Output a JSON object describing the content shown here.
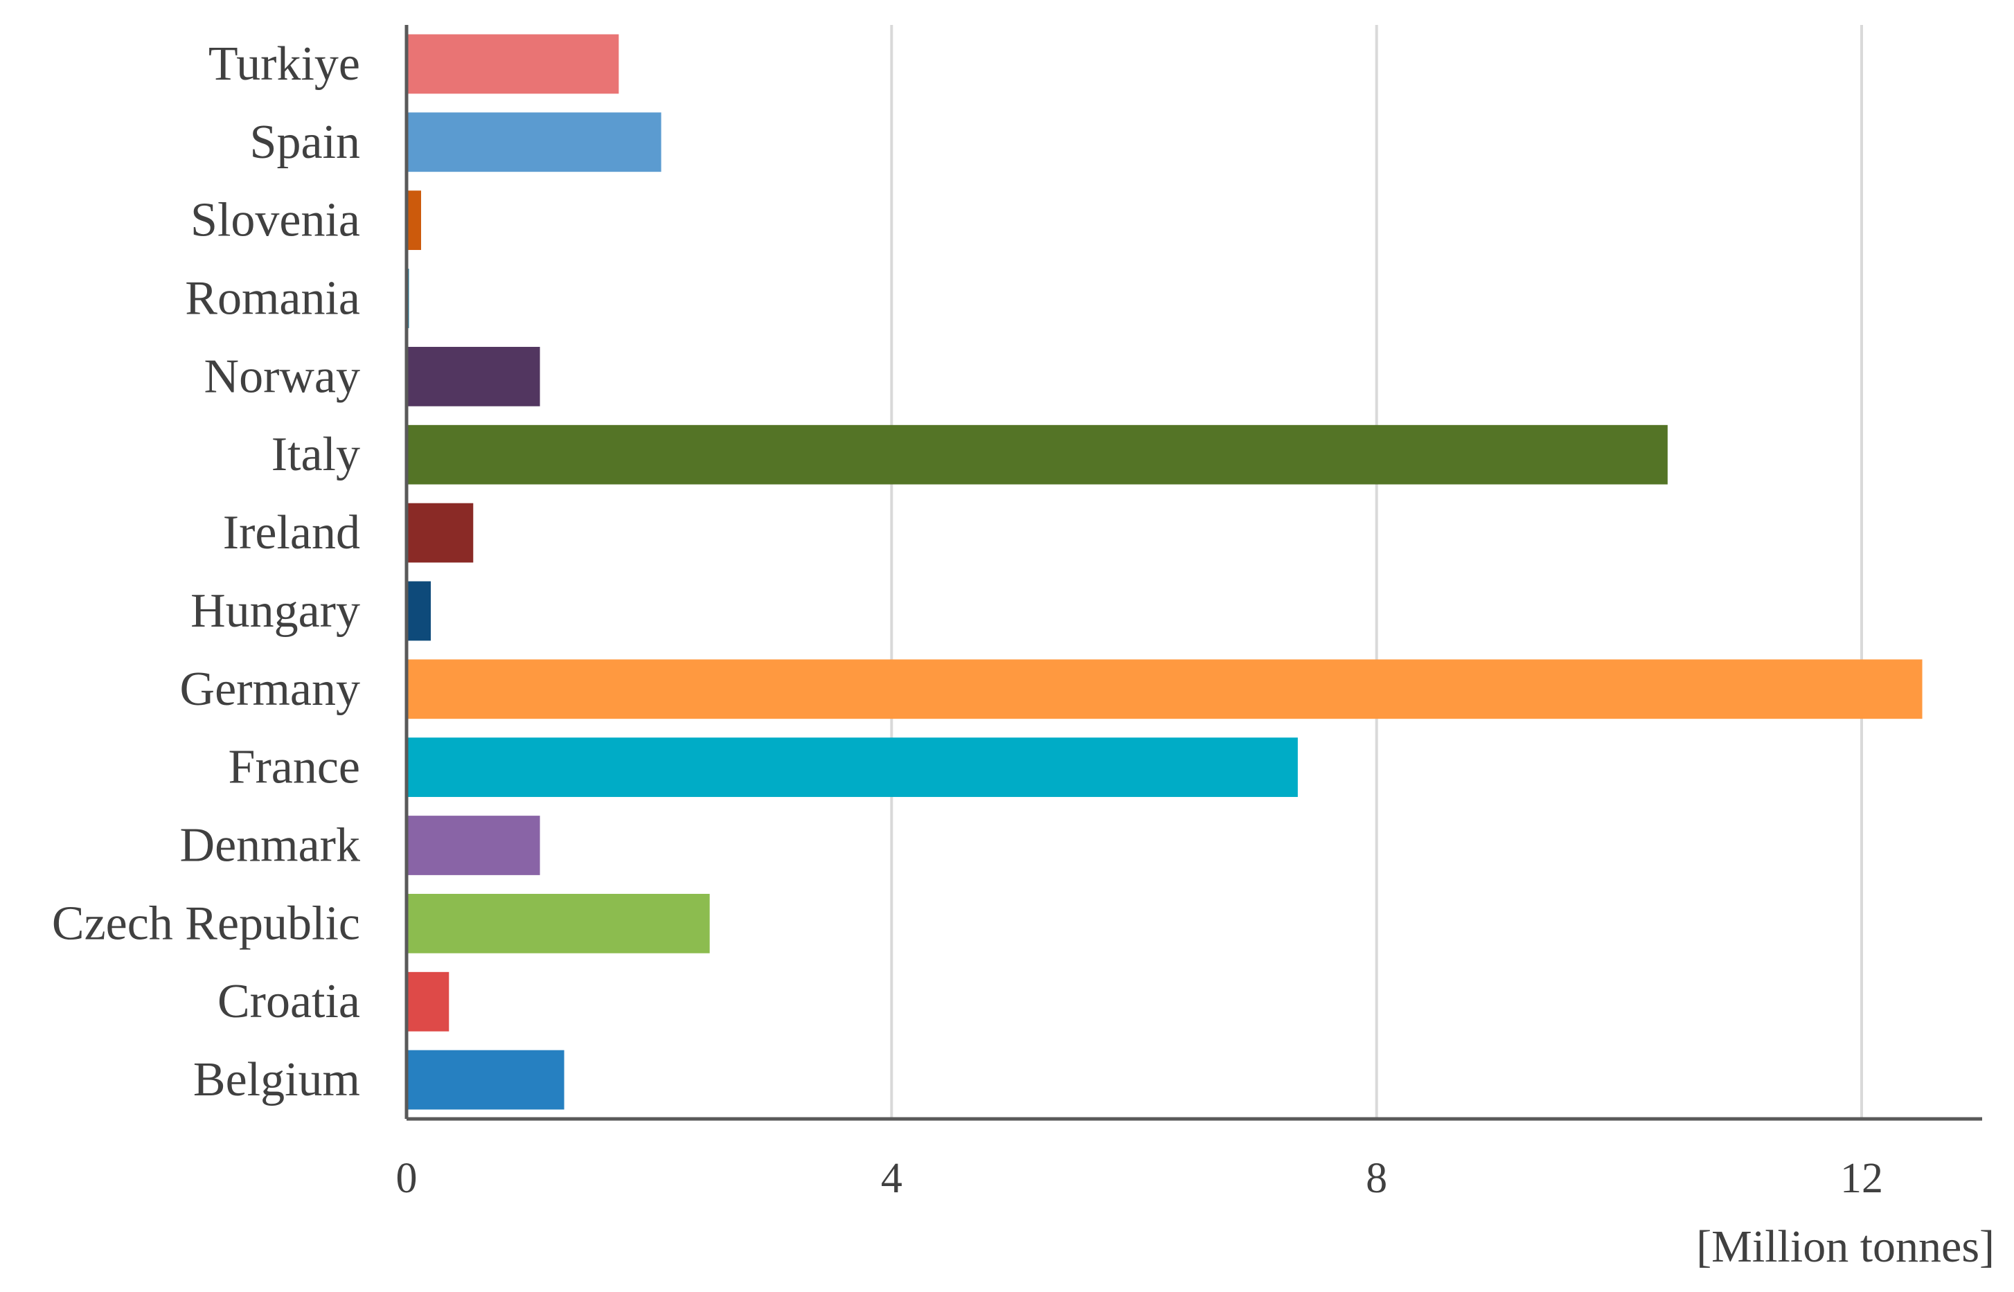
{
  "chart_data": {
    "type": "bar",
    "orientation": "horizontal",
    "categories": [
      "Turkiye",
      "Spain",
      "Slovenia",
      "Romania",
      "Norway",
      "Italy",
      "Ireland",
      "Hungary",
      "Germany",
      "France",
      "Denmark",
      "Czech Republic",
      "Croatia",
      "Belgium"
    ],
    "values": [
      1.75,
      2.1,
      0.12,
      0.02,
      1.1,
      10.4,
      0.55,
      0.2,
      12.5,
      7.35,
      1.1,
      2.5,
      0.35,
      1.3
    ],
    "colors": [
      "#e97474",
      "#5b9bd0",
      "#cc5a0c",
      "#1f7a9a",
      "#523660",
      "#547426",
      "#8a2a26",
      "#0e4a7a",
      "#ff9940",
      "#00acc6",
      "#8964a6",
      "#8cbc4f",
      "#de4a48",
      "#2680c1"
    ],
    "x_ticks": [
      "0",
      "4",
      "8",
      "12"
    ],
    "xlim": [
      0,
      13
    ],
    "xlabel": "[Million tonnes]",
    "ylabel": "",
    "title": "",
    "grid": "vertical"
  }
}
